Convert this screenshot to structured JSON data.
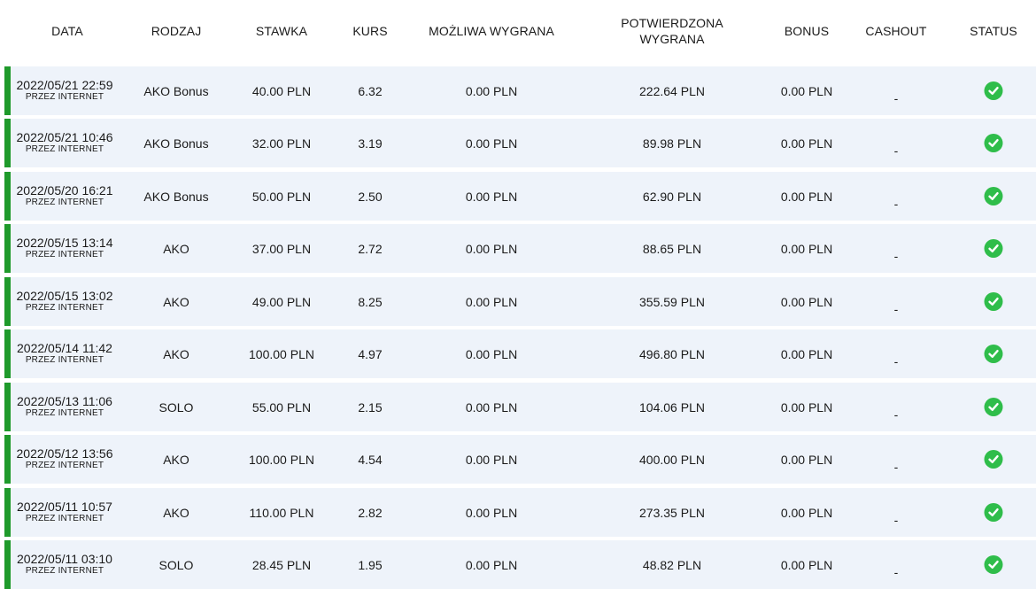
{
  "columns": {
    "date": "DATA",
    "type": "RODZAJ",
    "stake": "STAWKA",
    "odds": "KURS",
    "possible_win": "MOŻLIWA WYGRANA",
    "confirmed_win_line1": "POTWIERDZONA",
    "confirmed_win_line2": "WYGRANA",
    "bonus": "BONUS",
    "cashout": "CASHOUT",
    "status": "STATUS"
  },
  "bets": [
    {
      "date": "2022/05/21 22:59",
      "source": "PRZEZ INTERNET",
      "type": "AKO Bonus",
      "stake": "40.00 PLN",
      "odds": "6.32",
      "possible_win": "0.00 PLN",
      "confirmed_win": "222.64 PLN",
      "bonus": "0.00 PLN",
      "cashout": "-",
      "status": "won-check-icon"
    },
    {
      "date": "2022/05/21 10:46",
      "source": "PRZEZ INTERNET",
      "type": "AKO Bonus",
      "stake": "32.00 PLN",
      "odds": "3.19",
      "possible_win": "0.00 PLN",
      "confirmed_win": "89.98 PLN",
      "bonus": "0.00 PLN",
      "cashout": "-",
      "status": "won-check-icon"
    },
    {
      "date": "2022/05/20 16:21",
      "source": "PRZEZ INTERNET",
      "type": "AKO Bonus",
      "stake": "50.00 PLN",
      "odds": "2.50",
      "possible_win": "0.00 PLN",
      "confirmed_win": "62.90 PLN",
      "bonus": "0.00 PLN",
      "cashout": "-",
      "status": "won-check-icon"
    },
    {
      "date": "2022/05/15 13:14",
      "source": "PRZEZ INTERNET",
      "type": "AKO",
      "stake": "37.00 PLN",
      "odds": "2.72",
      "possible_win": "0.00 PLN",
      "confirmed_win": "88.65 PLN",
      "bonus": "0.00 PLN",
      "cashout": "-",
      "status": "won-check-icon"
    },
    {
      "date": "2022/05/15 13:02",
      "source": "PRZEZ INTERNET",
      "type": "AKO",
      "stake": "49.00 PLN",
      "odds": "8.25",
      "possible_win": "0.00 PLN",
      "confirmed_win": "355.59 PLN",
      "bonus": "0.00 PLN",
      "cashout": "-",
      "status": "won-check-icon"
    },
    {
      "date": "2022/05/14 11:42",
      "source": "PRZEZ INTERNET",
      "type": "AKO",
      "stake": "100.00 PLN",
      "odds": "4.97",
      "possible_win": "0.00 PLN",
      "confirmed_win": "496.80 PLN",
      "bonus": "0.00 PLN",
      "cashout": "-",
      "status": "won-check-icon"
    },
    {
      "date": "2022/05/13 11:06",
      "source": "PRZEZ INTERNET",
      "type": "SOLO",
      "stake": "55.00 PLN",
      "odds": "2.15",
      "possible_win": "0.00 PLN",
      "confirmed_win": "104.06 PLN",
      "bonus": "0.00 PLN",
      "cashout": "-",
      "status": "won-check-icon"
    },
    {
      "date": "2022/05/12 13:56",
      "source": "PRZEZ INTERNET",
      "type": "AKO",
      "stake": "100.00 PLN",
      "odds": "4.54",
      "possible_win": "0.00 PLN",
      "confirmed_win": "400.00 PLN",
      "bonus": "0.00 PLN",
      "cashout": "-",
      "status": "won-check-icon"
    },
    {
      "date": "2022/05/11 10:57",
      "source": "PRZEZ INTERNET",
      "type": "AKO",
      "stake": "110.00 PLN",
      "odds": "2.82",
      "possible_win": "0.00 PLN",
      "confirmed_win": "273.35 PLN",
      "bonus": "0.00 PLN",
      "cashout": "-",
      "status": "won-check-icon"
    },
    {
      "date": "2022/05/11 03:10",
      "source": "PRZEZ INTERNET",
      "type": "SOLO",
      "stake": "28.45 PLN",
      "odds": "1.95",
      "possible_win": "0.00 PLN",
      "confirmed_win": "48.82 PLN",
      "bonus": "0.00 PLN",
      "cashout": "-",
      "status": "won-check-icon"
    }
  ],
  "colors": {
    "row_background": "#eef3fa",
    "row_marker": "#1f9a2b",
    "status_ok": "#2fbd4a"
  }
}
